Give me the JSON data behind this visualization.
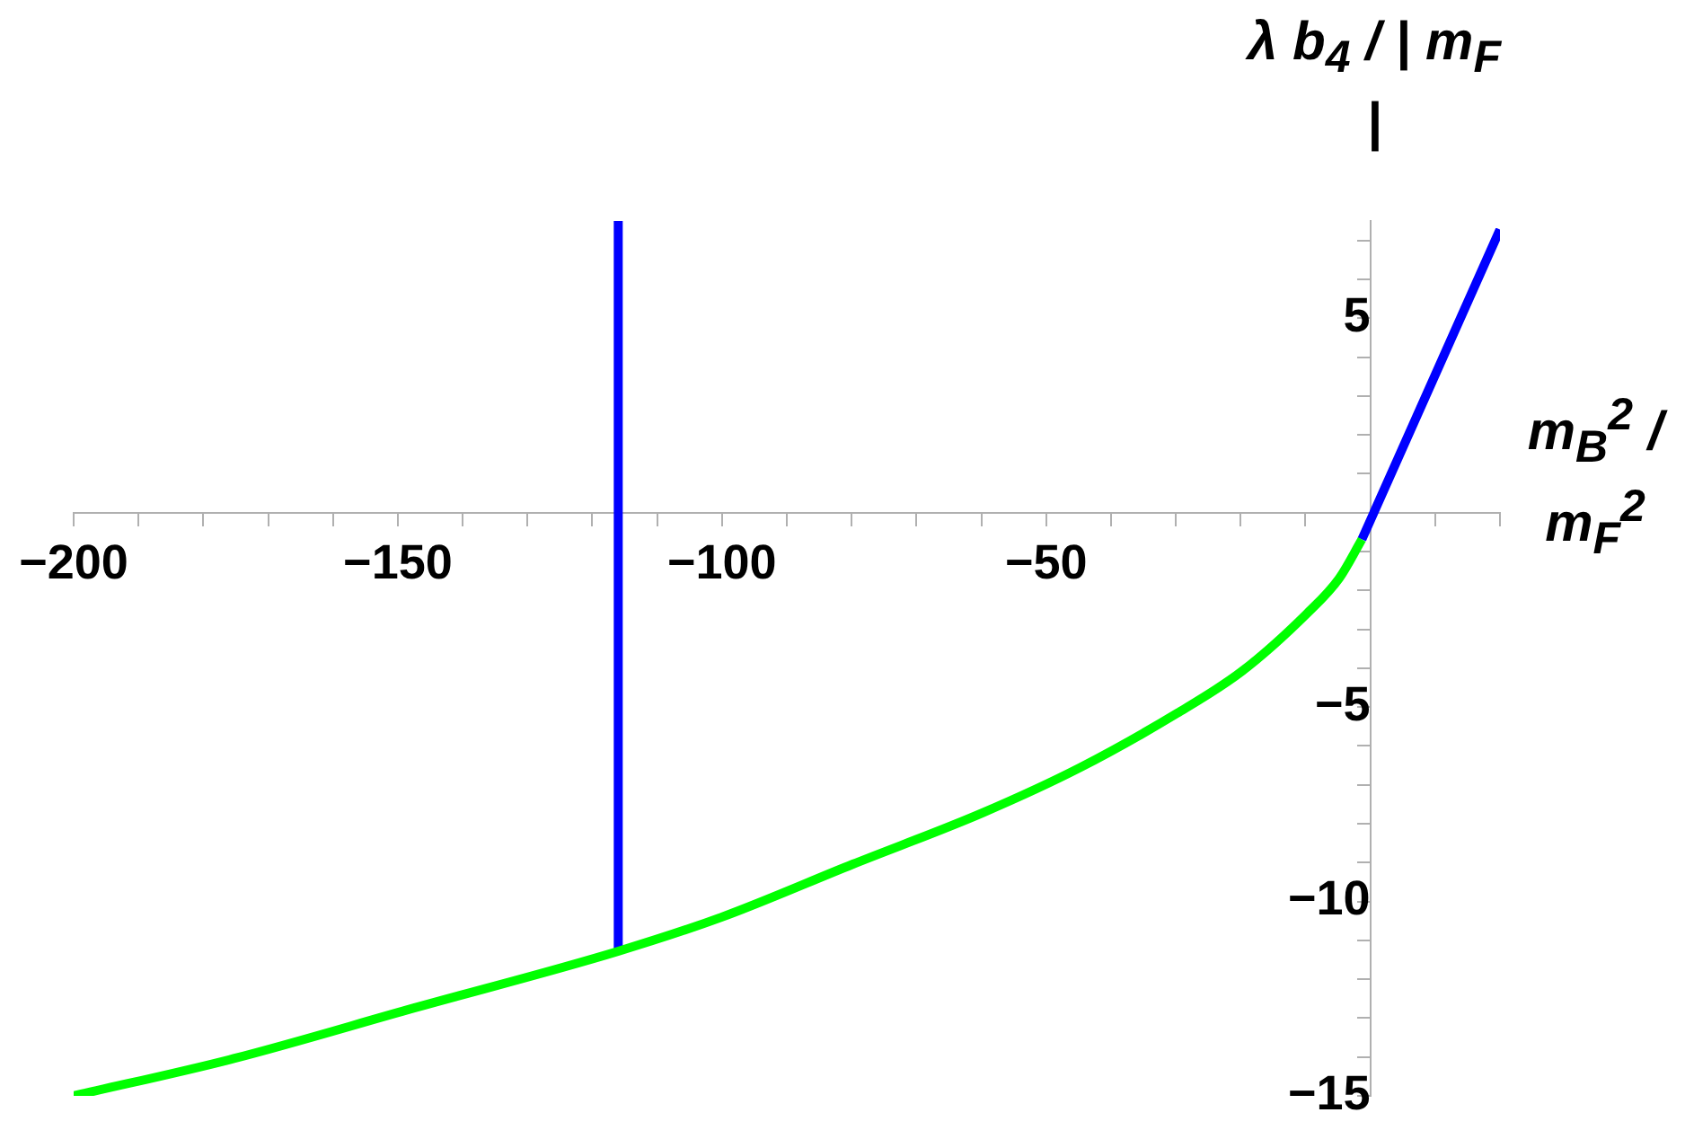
{
  "chart_data": {
    "type": "line",
    "xlabel": "m$_{B}$$^{2}$ / m$_{F}$$^{2}$",
    "ylabel": "λ b$_{4}$ / | m$_{F}$ |",
    "xlim": [
      -200,
      20
    ],
    "ylim": [
      -15,
      7.5
    ],
    "xticks": [
      -200,
      {
        "value": -190,
        "label": null
      },
      {
        "value": -180,
        "label": null
      },
      {
        "value": -170,
        "label": null
      },
      {
        "value": -160,
        "label": null
      },
      -150,
      {
        "value": -140,
        "label": null
      },
      {
        "value": -130,
        "label": null
      },
      {
        "value": -120,
        "label": null
      },
      {
        "value": -110,
        "label": null
      },
      -100,
      {
        "value": -90,
        "label": null
      },
      {
        "value": -80,
        "label": null
      },
      {
        "value": -70,
        "label": null
      },
      {
        "value": -60,
        "label": null
      },
      -50,
      {
        "value": -40,
        "label": null
      },
      {
        "value": -30,
        "label": null
      },
      {
        "value": -20,
        "label": null
      },
      {
        "value": -10,
        "label": null
      },
      {
        "value": 10,
        "label": null
      },
      {
        "value": 20,
        "label": null
      }
    ],
    "yticks": [
      -15,
      {
        "value": -14,
        "label": null
      },
      {
        "value": -13,
        "label": null
      },
      {
        "value": -12,
        "label": null
      },
      {
        "value": -11,
        "label": null
      },
      -10,
      {
        "value": -9,
        "label": null
      },
      {
        "value": -8,
        "label": null
      },
      {
        "value": -7,
        "label": null
      },
      {
        "value": -6,
        "label": null
      },
      -5,
      {
        "value": -4,
        "label": null
      },
      {
        "value": -3,
        "label": null
      },
      {
        "value": -2,
        "label": null
      },
      {
        "value": -1,
        "label": null
      },
      {
        "value": 1,
        "label": null
      },
      {
        "value": 2,
        "label": null
      },
      {
        "value": 3,
        "label": null
      },
      {
        "value": 4,
        "label": null
      },
      5,
      {
        "value": 6,
        "label": null
      },
      {
        "value": 7,
        "label": null
      }
    ],
    "grid": false,
    "legend": false,
    "marker": "none",
    "line_style": "solid",
    "series": [
      {
        "color": "#00ff00",
        "x": [
          -200,
          -175.3,
          -147.5,
          -116,
          -100,
          -79.8,
          -59.8,
          -44.8,
          -29.8,
          -19.8,
          -9.8,
          -4.8,
          -1.3
        ],
        "values": [
          -15,
          -14.04,
          -12.74,
          -11.28,
          -10.4,
          -9.04,
          -7.72,
          -6.56,
          -5.16,
          -4.08,
          -2.6,
          -1.69,
          -0.69
        ]
      },
      {
        "color": "#0000ff",
        "x": [
          -116,
          -116
        ],
        "values": [
          7.5,
          -11.28
        ]
      },
      {
        "color": "#0000ff",
        "x": [
          -1.3,
          20
        ],
        "values": [
          -0.69,
          7.28
        ]
      }
    ]
  }
}
